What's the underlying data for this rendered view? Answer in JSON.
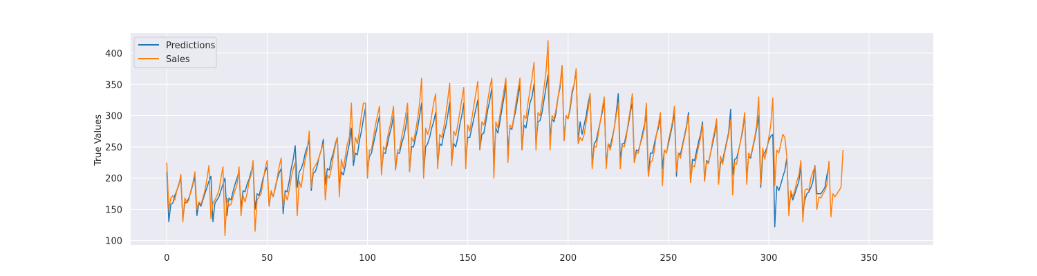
{
  "chart_data": {
    "type": "line",
    "title": "",
    "xlabel": "",
    "ylabel": "True Values",
    "xlim": [
      -18,
      382
    ],
    "ylim": [
      93,
      432
    ],
    "x_ticks": [
      0,
      50,
      100,
      150,
      200,
      250,
      300,
      350
    ],
    "y_ticks": [
      100,
      150,
      200,
      250,
      300,
      350,
      400
    ],
    "grid": true,
    "background": "#eaeaf2",
    "legend_position": "top-left",
    "series": [
      {
        "name": "Predictions",
        "color": "#1f77b4",
        "x_start": 0,
        "values": [
          210,
          130,
          158,
          160,
          172,
          180,
          190,
          200,
          135,
          160,
          162,
          168,
          178,
          190,
          202,
          140,
          160,
          155,
          165,
          175,
          185,
          195,
          203,
          130,
          160,
          165,
          170,
          180,
          190,
          200,
          140,
          168,
          165,
          178,
          190,
          200,
          210,
          150,
          180,
          178,
          190,
          198,
          210,
          220,
          150,
          175,
          172,
          185,
          200,
          210,
          218,
          155,
          178,
          170,
          183,
          198,
          208,
          215,
          143,
          180,
          178,
          195,
          215,
          230,
          252,
          185,
          210,
          215,
          225,
          240,
          250,
          260,
          180,
          208,
          210,
          220,
          235,
          245,
          262,
          190,
          215,
          213,
          230,
          240,
          255,
          265,
          190,
          210,
          205,
          220,
          240,
          255,
          280,
          220,
          240,
          237,
          260,
          275,
          295,
          312,
          210,
          235,
          240,
          255,
          270,
          285,
          300,
          212,
          240,
          240,
          255,
          270,
          282,
          300,
          213,
          240,
          240,
          255,
          265,
          280,
          305,
          212,
          250,
          250,
          265,
          280,
          300,
          320,
          205,
          250,
          255,
          265,
          280,
          290,
          305,
          220,
          255,
          252,
          270,
          282,
          300,
          322,
          225,
          255,
          250,
          265,
          285,
          300,
          320,
          225,
          265,
          265,
          280,
          295,
          310,
          325,
          245,
          270,
          272,
          290,
          310,
          325,
          345,
          225,
          280,
          272,
          290,
          310,
          328,
          350,
          245,
          280,
          278,
          295,
          310,
          330,
          350,
          245,
          285,
          280,
          300,
          320,
          330,
          350,
          255,
          290,
          292,
          305,
          325,
          345,
          365,
          265,
          295,
          290,
          305,
          330,
          345,
          380,
          260,
          300,
          295,
          310,
          335,
          350,
          370,
          260,
          290,
          270,
          285,
          300,
          320,
          335,
          220,
          255,
          260,
          275,
          290,
          305,
          325,
          220,
          255,
          250,
          265,
          280,
          305,
          335,
          230,
          255,
          255,
          270,
          285,
          305,
          320,
          225,
          245,
          243,
          255,
          270,
          285,
          300,
          203,
          240,
          240,
          255,
          270,
          280,
          298,
          215,
          245,
          240,
          255,
          270,
          285,
          305,
          203,
          240,
          238,
          253,
          268,
          283,
          305,
          193,
          230,
          228,
          243,
          258,
          270,
          290,
          195,
          228,
          225,
          240,
          255,
          270,
          290,
          193,
          225,
          228,
          243,
          258,
          273,
          310,
          205,
          230,
          232,
          245,
          260,
          275,
          303,
          200,
          235,
          232,
          248,
          262,
          280,
          300,
          185,
          235,
          240,
          248,
          260,
          267,
          270,
          122,
          187,
          180,
          190,
          202,
          212,
          232,
          150,
          175,
          165,
          175,
          185,
          195,
          220,
          145,
          165,
          175,
          178,
          185,
          195,
          220,
          175,
          175,
          175,
          180,
          185,
          205,
          220
        ]
      },
      {
        "name": "Sales",
        "color": "#ff7f0e",
        "x_start": 0,
        "values": [
          225,
          150,
          168,
          172,
          165,
          180,
          188,
          206,
          130,
          168,
          160,
          165,
          180,
          192,
          210,
          150,
          162,
          158,
          168,
          180,
          198,
          220,
          135,
          160,
          165,
          172,
          180,
          200,
          218,
          108,
          168,
          156,
          158,
          170,
          180,
          190,
          218,
          140,
          172,
          162,
          175,
          195,
          205,
          228,
          115,
          165,
          170,
          175,
          195,
          215,
          228,
          155,
          180,
          170,
          185,
          200,
          218,
          232,
          155,
          175,
          165,
          180,
          200,
          215,
          225,
          140,
          195,
          185,
          210,
          230,
          245,
          275,
          185,
          215,
          220,
          225,
          235,
          245,
          255,
          165,
          205,
          200,
          215,
          235,
          252,
          265,
          170,
          230,
          215,
          235,
          255,
          265,
          320,
          230,
          265,
          255,
          275,
          300,
          320,
          320,
          200,
          245,
          245,
          265,
          285,
          300,
          315,
          205,
          250,
          245,
          265,
          280,
          295,
          315,
          213,
          245,
          245,
          265,
          280,
          300,
          320,
          210,
          265,
          258,
          275,
          295,
          320,
          360,
          200,
          280,
          270,
          280,
          300,
          320,
          335,
          215,
          270,
          265,
          280,
          300,
          325,
          352,
          220,
          275,
          268,
          285,
          305,
          325,
          345,
          215,
          285,
          275,
          295,
          315,
          335,
          355,
          245,
          290,
          285,
          300,
          325,
          345,
          360,
          200,
          290,
          280,
          300,
          320,
          340,
          360,
          225,
          285,
          280,
          298,
          320,
          340,
          360,
          245,
          300,
          295,
          320,
          340,
          360,
          385,
          245,
          305,
          300,
          320,
          345,
          370,
          420,
          245,
          300,
          295,
          310,
          330,
          350,
          380,
          260,
          300,
          295,
          315,
          340,
          350,
          375,
          255,
          265,
          260,
          270,
          290,
          310,
          335,
          215,
          250,
          250,
          270,
          290,
          310,
          330,
          215,
          255,
          245,
          260,
          280,
          300,
          320,
          215,
          252,
          250,
          265,
          290,
          310,
          335,
          225,
          240,
          240,
          255,
          265,
          280,
          320,
          203,
          225,
          228,
          245,
          270,
          285,
          305,
          188,
          245,
          240,
          260,
          275,
          290,
          315,
          210,
          240,
          232,
          250,
          265,
          280,
          300,
          193,
          220,
          218,
          235,
          250,
          265,
          285,
          195,
          225,
          223,
          240,
          260,
          275,
          295,
          190,
          235,
          222,
          240,
          255,
          270,
          293,
          173,
          225,
          222,
          245,
          260,
          280,
          305,
          190,
          240,
          235,
          250,
          265,
          285,
          330,
          190,
          248,
          230,
          245,
          265,
          285,
          328,
          188,
          245,
          240,
          255,
          270,
          265,
          235,
          140,
          180,
          170,
          180,
          195,
          205,
          228,
          130,
          180,
          183,
          180,
          200,
          210,
          218,
          150,
          170,
          168,
          175,
          180,
          190,
          227,
          138,
          175,
          170,
          175,
          180,
          185,
          245
        ]
      }
    ]
  }
}
